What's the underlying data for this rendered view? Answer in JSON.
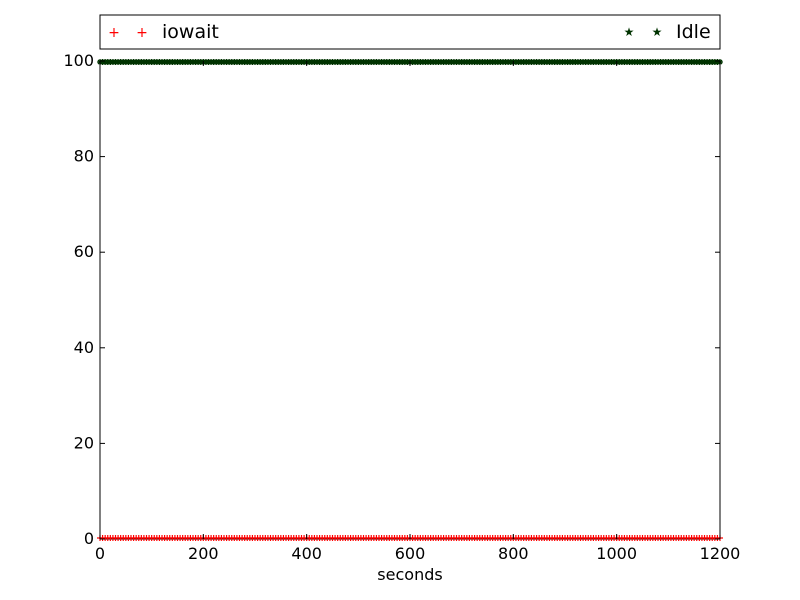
{
  "chart_data": {
    "type": "scatter",
    "xlabel": "seconds",
    "ylabel": "",
    "xlim": [
      0,
      1200
    ],
    "ylim": [
      0,
      100
    ],
    "xticks": [
      0,
      200,
      400,
      600,
      800,
      1000,
      1200
    ],
    "yticks": [
      0,
      20,
      40,
      60,
      80,
      100
    ],
    "grid": false,
    "legend_position": "top",
    "sample_interval_seconds": 5,
    "series": [
      {
        "name": "iowait",
        "marker": "+",
        "color": "#ff0000",
        "value": 0
      },
      {
        "name": "Idle",
        "marker": "*",
        "color": "#003300",
        "value": 100
      }
    ]
  }
}
